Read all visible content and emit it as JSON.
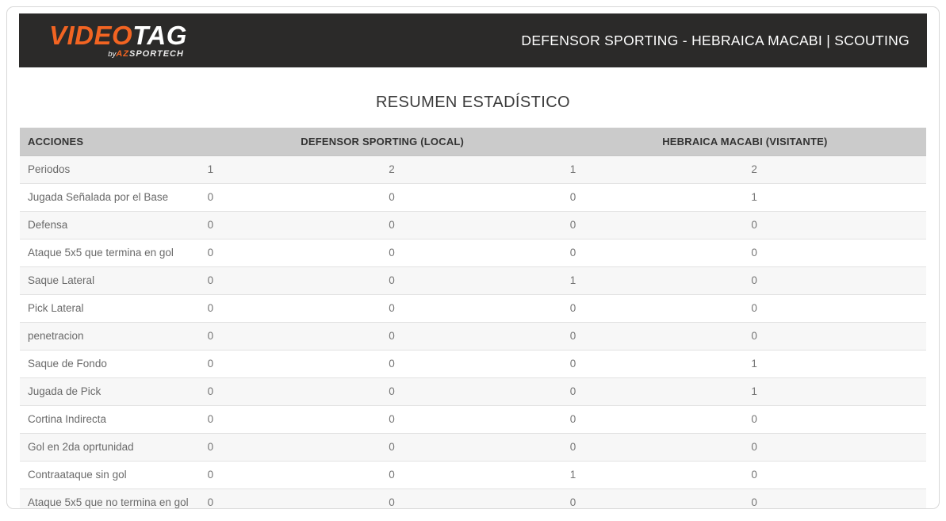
{
  "header": {
    "logo": {
      "video": "VIDEO",
      "tag": "TAG",
      "by": "by",
      "az": "AZ",
      "sportech": "SPORTECH"
    },
    "match_title": "DEFENSOR SPORTING - HEBRAICA MACABI | SCOUTING"
  },
  "colors": {
    "accent_orange": "#f26422",
    "topbar_background": "#2b2a29",
    "table_header_background": "#cbcbcb",
    "row_stripe": "#f7f7f7"
  },
  "main": {
    "section_title": "RESUMEN ESTADÍSTICO",
    "table": {
      "action_header": "ACCIONES",
      "group_headers": [
        {
          "label": "DEFENSOR SPORTING (LOCAL)",
          "span": 2
        },
        {
          "label": "HEBRAICA MACABI (VISITANTE)",
          "span": 2
        }
      ],
      "rows": [
        {
          "action": "Periodos",
          "values": [
            "1",
            "2",
            "1",
            "2"
          ]
        },
        {
          "action": "Jugada Señalada por el Base",
          "values": [
            "0",
            "0",
            "0",
            "1"
          ]
        },
        {
          "action": "Defensa",
          "values": [
            "0",
            "0",
            "0",
            "0"
          ]
        },
        {
          "action": "Ataque 5x5 que termina en gol",
          "values": [
            "0",
            "0",
            "0",
            "0"
          ]
        },
        {
          "action": "Saque Lateral",
          "values": [
            "0",
            "0",
            "1",
            "0"
          ]
        },
        {
          "action": "Pick Lateral",
          "values": [
            "0",
            "0",
            "0",
            "0"
          ]
        },
        {
          "action": "penetracion",
          "values": [
            "0",
            "0",
            "0",
            "0"
          ]
        },
        {
          "action": "Saque de Fondo",
          "values": [
            "0",
            "0",
            "0",
            "1"
          ]
        },
        {
          "action": "Jugada de Pick",
          "values": [
            "0",
            "0",
            "0",
            "1"
          ]
        },
        {
          "action": "Cortina Indirecta",
          "values": [
            "0",
            "0",
            "0",
            "0"
          ]
        },
        {
          "action": "Gol en 2da oprtunidad",
          "values": [
            "0",
            "0",
            "0",
            "0"
          ]
        },
        {
          "action": "Contraataque sin gol",
          "values": [
            "0",
            "0",
            "1",
            "0"
          ]
        },
        {
          "action": "Ataque 5x5 que no termina en gol",
          "values": [
            "0",
            "0",
            "0",
            "0"
          ]
        }
      ]
    }
  }
}
